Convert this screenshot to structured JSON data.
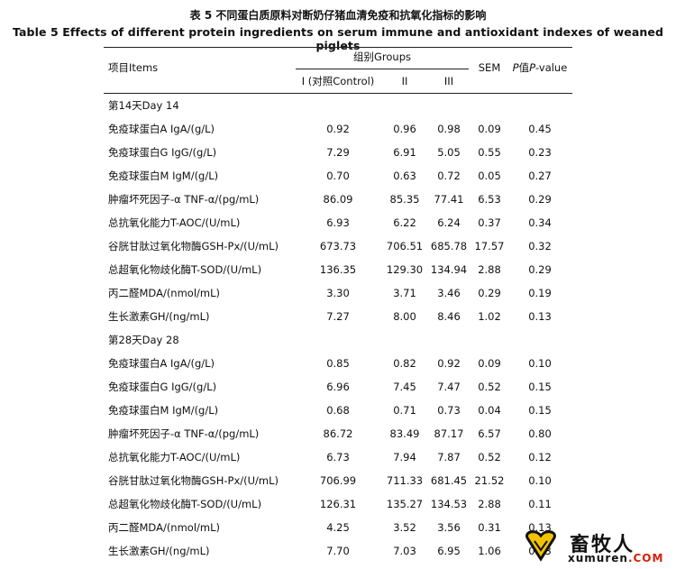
{
  "title_cn": "表 5 不同蛋白质原料对断奶仔猪血清免疫和抗氧化指标的影响",
  "title_en": "Table 5 Effects of different protein ingredients on serum immune and antioxidant indexes of weaned piglets",
  "header": {
    "items": "项目Items",
    "groups": "组别Groups",
    "g1": "I (对照Control)",
    "g2": "II",
    "g3": "III",
    "sem": "SEM",
    "p_prefix": "P",
    "p_mid": "值",
    "p_italic": "P",
    "p_suffix": "-value"
  },
  "sections": [
    {
      "title": "第14天Day 14",
      "rows": [
        {
          "label": "免疫球蛋白A IgA/(g/L)",
          "v1": "0.92",
          "v2": "0.96",
          "v3": "0.98",
          "sem": "0.09",
          "p": "0.45"
        },
        {
          "label": "免疫球蛋白G IgG/(g/L)",
          "v1": "7.29",
          "v2": "6.91",
          "v3": "5.05",
          "sem": "0.55",
          "p": "0.23"
        },
        {
          "label": "免疫球蛋白M IgM/(g/L)",
          "v1": "0.70",
          "v2": "0.63",
          "v3": "0.72",
          "sem": "0.05",
          "p": "0.27"
        },
        {
          "label": "肿瘤坏死因子-α TNF-α/(pg/mL)",
          "v1": "86.09",
          "v2": "85.35",
          "v3": "77.41",
          "sem": "6.53",
          "p": "0.29"
        },
        {
          "label": "总抗氧化能力T-AOC/(U/mL)",
          "v1": "6.93",
          "v2": "6.22",
          "v3": "6.24",
          "sem": "0.37",
          "p": "0.34"
        },
        {
          "label": "谷胱甘肽过氧化物酶GSH-Px/(U/mL)",
          "v1": "673.73",
          "v2": "706.51",
          "v3": "685.78",
          "sem": "17.57",
          "p": "0.32"
        },
        {
          "label": "总超氧化物歧化酶T-SOD/(U/mL)",
          "v1": "136.35",
          "v2": "129.30",
          "v3": "134.94",
          "sem": "2.88",
          "p": "0.29"
        },
        {
          "label": "丙二醛MDA/(nmol/mL)",
          "v1": "3.30",
          "v2": "3.71",
          "v3": "3.46",
          "sem": "0.29",
          "p": "0.19"
        },
        {
          "label": "生长激素GH/(ng/mL)",
          "v1": "7.27",
          "v2": "8.00",
          "v3": "8.46",
          "sem": "1.02",
          "p": "0.13"
        }
      ]
    },
    {
      "title": "第28天Day 28",
      "rows": [
        {
          "label": "免疫球蛋白A IgA/(g/L)",
          "v1": "0.85",
          "v2": "0.82",
          "v3": "0.92",
          "sem": "0.09",
          "p": "0.10"
        },
        {
          "label": "免疫球蛋白G IgG/(g/L)",
          "v1": "6.96",
          "v2": "7.45",
          "v3": "7.47",
          "sem": "0.52",
          "p": "0.15"
        },
        {
          "label": "免疫球蛋白M IgM/(g/L)",
          "v1": "0.68",
          "v2": "0.71",
          "v3": "0.73",
          "sem": "0.04",
          "p": "0.15"
        },
        {
          "label": "肿瘤坏死因子-α TNF-α/(pg/mL)",
          "v1": "86.72",
          "v2": "83.49",
          "v3": "87.17",
          "sem": "6.57",
          "p": "0.80"
        },
        {
          "label": "总抗氧化能力T-AOC/(U/mL)",
          "v1": "6.73",
          "v2": "7.94",
          "v3": "7.87",
          "sem": "0.52",
          "p": "0.12"
        },
        {
          "label": "谷胱甘肽过氧化物酶GSH-Px/(U/mL)",
          "v1": "706.99",
          "v2": "711.33",
          "v3": "681.45",
          "sem": "21.52",
          "p": "0.10"
        },
        {
          "label": "总超氧化物歧化酶T-SOD/(U/mL)",
          "v1": "126.31",
          "v2": "135.27",
          "v3": "134.53",
          "sem": "2.88",
          "p": "0.11"
        },
        {
          "label": "丙二醛MDA/(nmol/mL)",
          "v1": "4.25",
          "v2": "3.52",
          "v3": "3.56",
          "sem": "0.31",
          "p": "0.13"
        },
        {
          "label": "生长激素GH/(ng/mL)",
          "v1": "7.70",
          "v2": "7.03",
          "v3": "6.95",
          "sem": "1.06",
          "p": "0.13"
        }
      ]
    }
  ],
  "watermark": {
    "name": "畜牧人",
    "url_main": "xumuren",
    "url_dom": ".COM",
    "accent": "#d81e06",
    "heart": "#f2c200"
  }
}
